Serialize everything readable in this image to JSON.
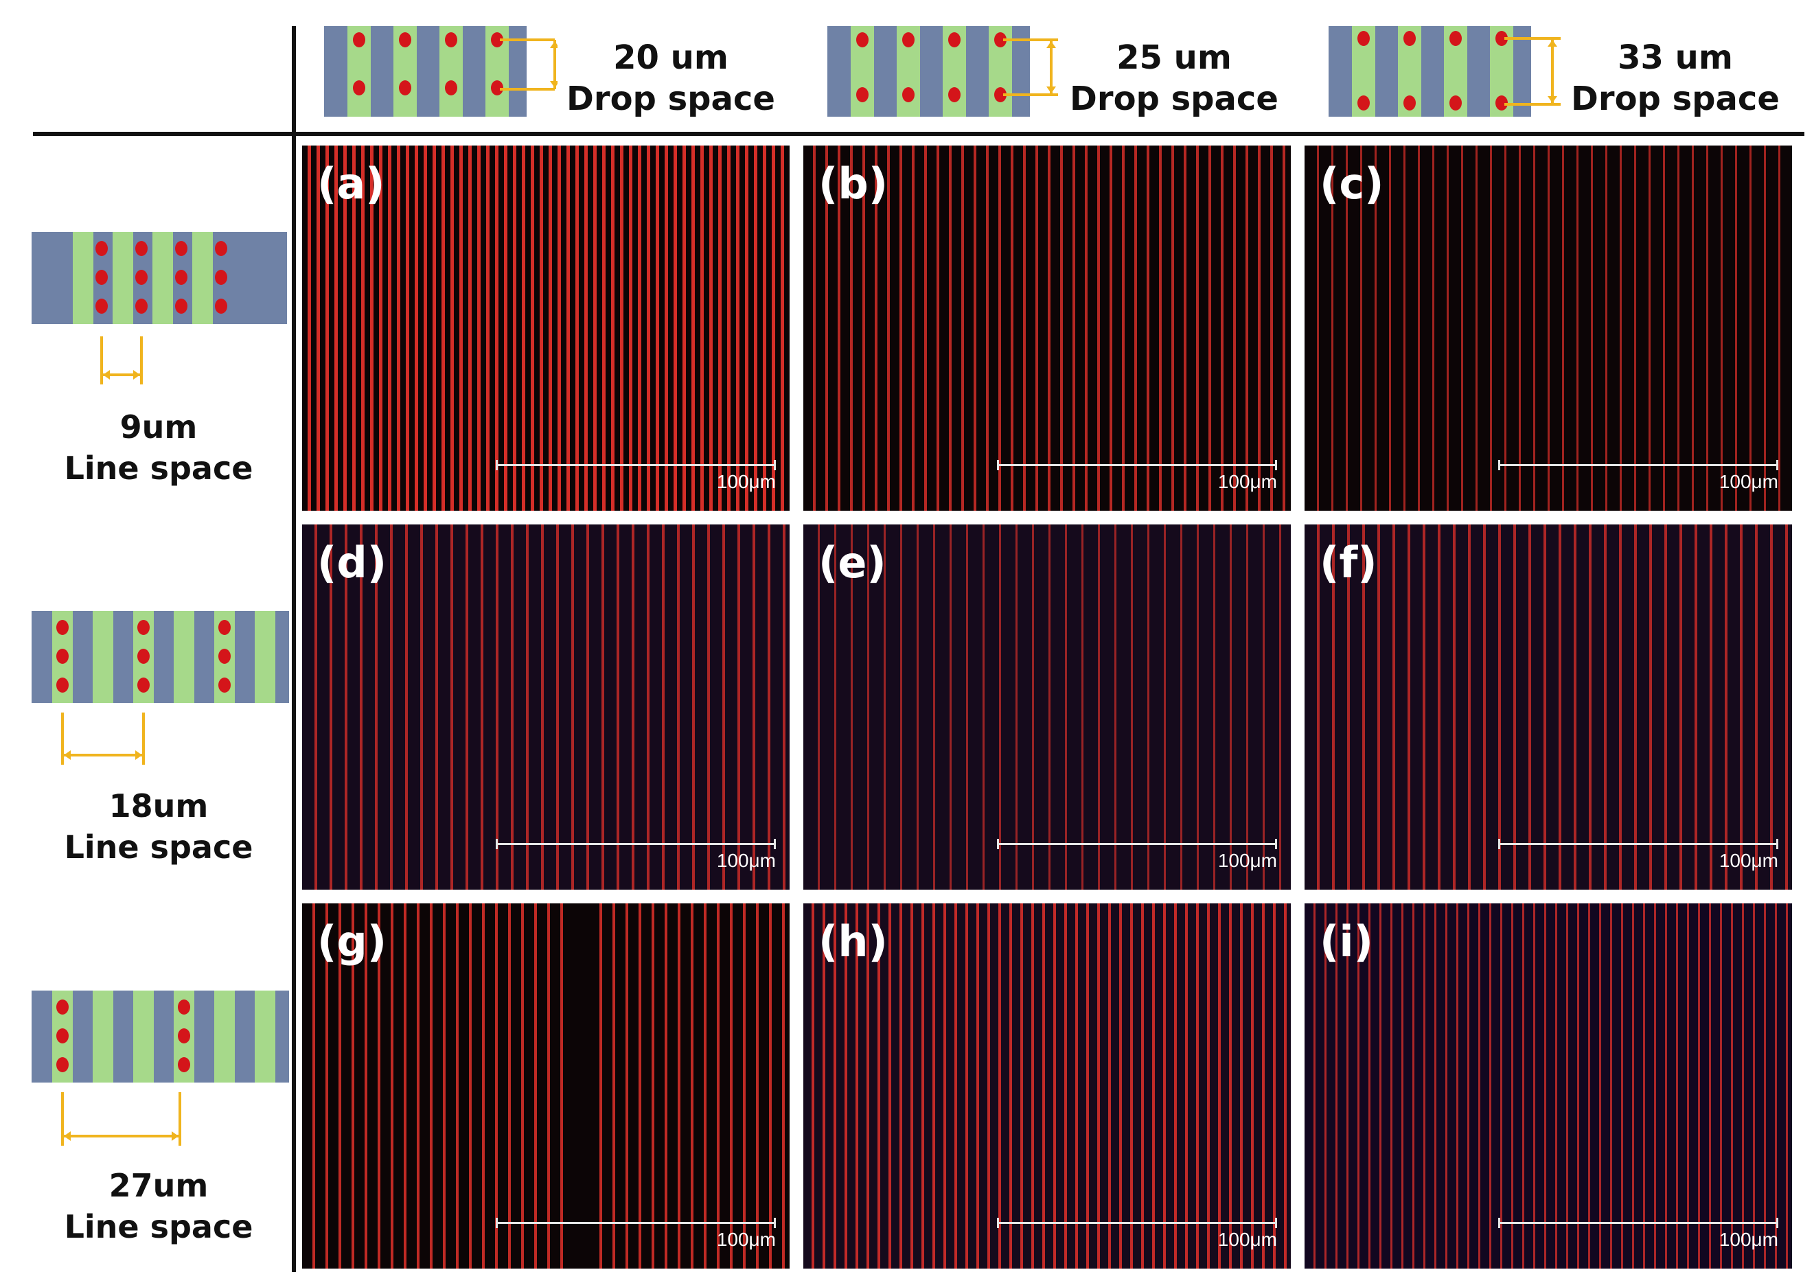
{
  "columns": [
    {
      "label_line1": "20 um",
      "label_line2": "Drop space"
    },
    {
      "label_line1": "25 um",
      "label_line2": "Drop space"
    },
    {
      "label_line1": "33 um",
      "label_line2": "Drop space"
    }
  ],
  "rows": [
    {
      "label_line1": "9um",
      "label_line2": "Line space"
    },
    {
      "label_line1": "18um",
      "label_line2": "Line space"
    },
    {
      "label_line1": "27um",
      "label_line2": "Line space"
    }
  ],
  "panels": [
    {
      "label": "(a)",
      "scale": "100μm"
    },
    {
      "label": "(b)",
      "scale": "100μm"
    },
    {
      "label": "(c)",
      "scale": "100μm"
    },
    {
      "label": "(d)",
      "scale": "100μm"
    },
    {
      "label": "(e)",
      "scale": "100μm"
    },
    {
      "label": "(f)",
      "scale": "100μm"
    },
    {
      "label": "(g)",
      "scale": "100μm"
    },
    {
      "label": "(h)",
      "scale": "100μm"
    },
    {
      "label": "(i)",
      "scale": "100μm"
    }
  ],
  "colors": {
    "pixel_blue": "#6f82a6",
    "pixel_green": "#a6d98a",
    "droplet_red": "#d4151a",
    "dimension_arrow": "#f0b41e",
    "fluorescent_line": "#e0302a"
  }
}
